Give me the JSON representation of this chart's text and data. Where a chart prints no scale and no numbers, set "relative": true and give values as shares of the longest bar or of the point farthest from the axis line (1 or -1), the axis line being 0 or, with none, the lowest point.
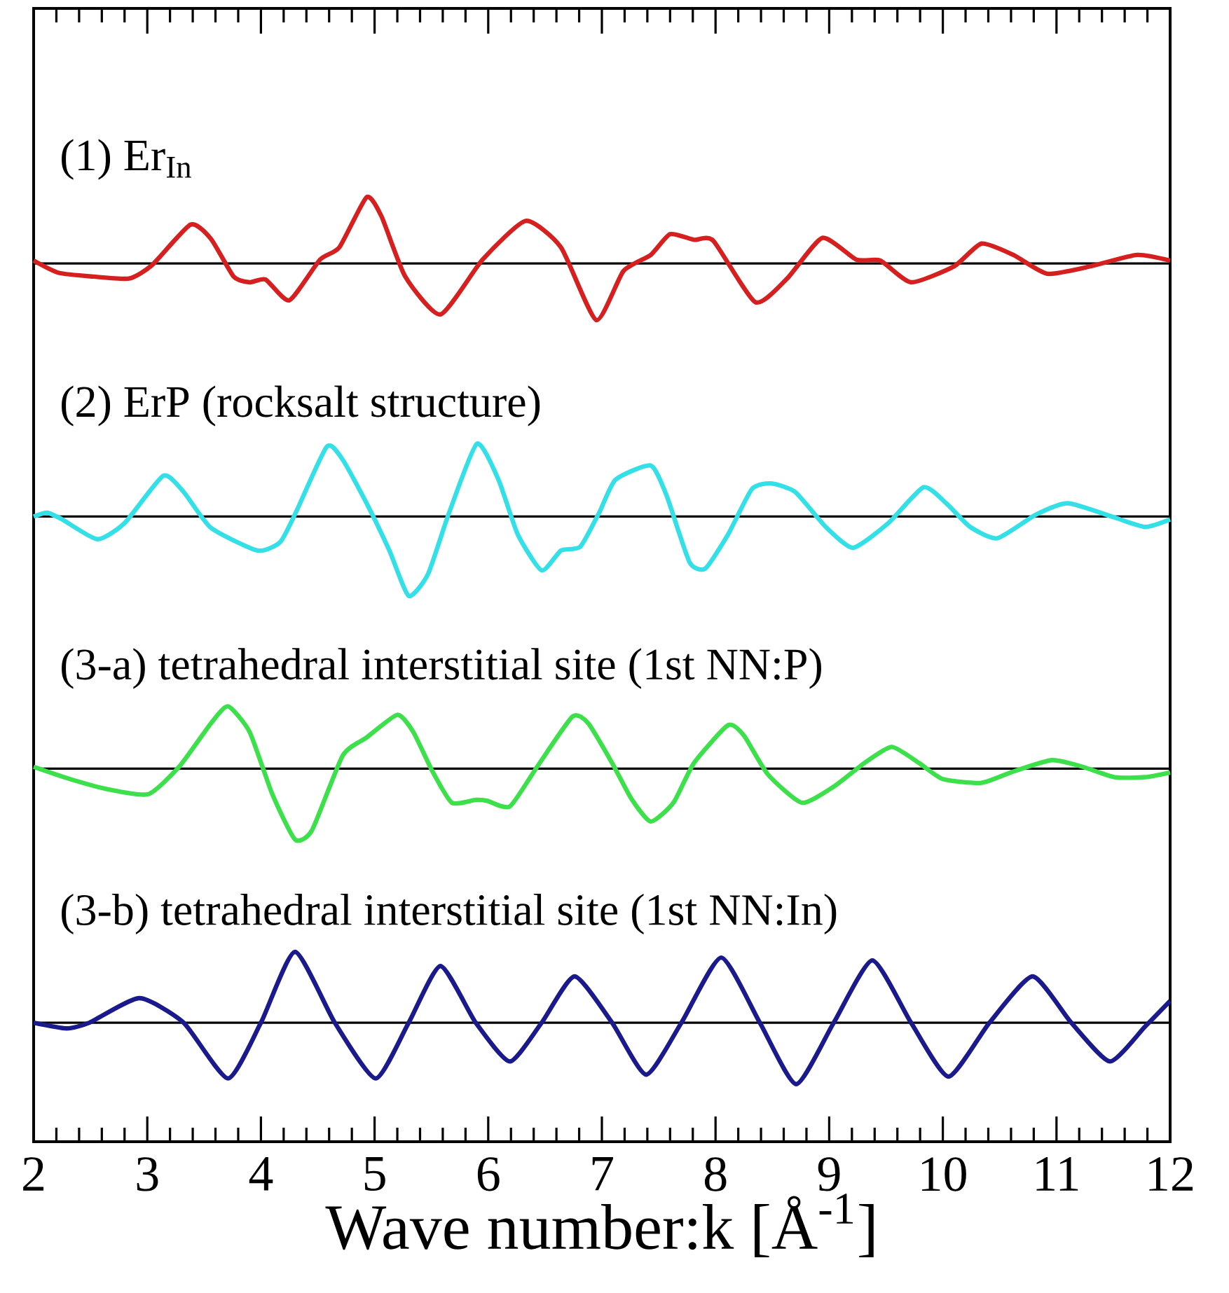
{
  "chart_data": {
    "type": "line",
    "xlabel": "Wave number:k [Å$^{-1}$]",
    "relative": true,
    "xlim": [
      2,
      12
    ],
    "xticks": [
      2,
      3,
      4,
      5,
      6,
      7,
      8,
      9,
      10,
      11,
      12
    ],
    "series": [
      {
        "name": "(1) Er$_{In}$",
        "color": "#d62020",
        "x": [
          2.0,
          2.22,
          2.53,
          2.84,
          3.04,
          3.38,
          3.56,
          3.76,
          3.9,
          4.04,
          4.25,
          4.52,
          4.69,
          4.93,
          5.06,
          5.27,
          5.58,
          5.95,
          6.33,
          6.64,
          6.95,
          7.19,
          7.43,
          7.6,
          7.81,
          7.98,
          8.35,
          8.63,
          8.94,
          9.24,
          9.45,
          9.72,
          10.1,
          10.34,
          10.62,
          10.92,
          11.3,
          11.71,
          12.0
        ],
        "values": [
          0.933,
          0.92,
          0.916,
          0.914,
          0.928,
          0.971,
          0.956,
          0.916,
          0.91,
          0.913,
          0.891,
          0.934,
          0.947,
          1.0,
          0.98,
          0.916,
          0.876,
          0.934,
          0.975,
          0.947,
          0.87,
          0.922,
          0.939,
          0.961,
          0.955,
          0.954,
          0.889,
          0.914,
          0.957,
          0.934,
          0.933,
          0.91,
          0.927,
          0.951,
          0.939,
          0.919,
          0.927,
          0.939,
          0.933
        ]
      },
      {
        "name": "(2) ErP (rocksalt structure)",
        "color": "#33e0e8",
        "x": [
          2.0,
          2.12,
          2.25,
          2.56,
          2.8,
          3.14,
          3.32,
          3.56,
          3.97,
          4.17,
          4.31,
          4.58,
          4.72,
          4.93,
          5.13,
          5.3,
          5.47,
          5.65,
          5.9,
          6.09,
          6.26,
          6.47,
          6.64,
          6.81,
          6.98,
          7.12,
          7.43,
          7.57,
          7.77,
          7.91,
          8.11,
          8.32,
          8.49,
          8.7,
          8.97,
          9.21,
          9.52,
          9.83,
          10.03,
          10.24,
          10.48,
          10.82,
          11.1,
          11.51,
          11.78,
          12.0
        ],
        "values": [
          0.662,
          0.666,
          0.659,
          0.638,
          0.655,
          0.705,
          0.688,
          0.65,
          0.626,
          0.635,
          0.667,
          0.736,
          0.722,
          0.676,
          0.626,
          0.578,
          0.601,
          0.664,
          0.739,
          0.701,
          0.643,
          0.605,
          0.626,
          0.63,
          0.667,
          0.701,
          0.716,
          0.684,
          0.614,
          0.607,
          0.643,
          0.691,
          0.697,
          0.688,
          0.651,
          0.629,
          0.655,
          0.693,
          0.676,
          0.651,
          0.639,
          0.664,
          0.676,
          0.661,
          0.651,
          0.659
        ]
      },
      {
        "name": "(3-a) tetrahedral interstitial site (1st NN:P)",
        "color": "#3ce04a",
        "x": [
          2.0,
          2.32,
          2.66,
          3.01,
          3.28,
          3.56,
          3.71,
          3.9,
          4.1,
          4.3,
          4.45,
          4.72,
          4.93,
          5.2,
          5.34,
          5.51,
          5.68,
          5.89,
          5.99,
          6.19,
          6.43,
          6.74,
          6.88,
          7.09,
          7.26,
          7.43,
          7.63,
          7.81,
          8.11,
          8.25,
          8.46,
          8.76,
          9.04,
          9.31,
          9.55,
          9.79,
          10.0,
          10.34,
          10.62,
          10.96,
          11.23,
          11.51,
          11.78,
          12.0
        ],
        "values": [
          0.397,
          0.384,
          0.373,
          0.368,
          0.397,
          0.443,
          0.461,
          0.434,
          0.368,
          0.32,
          0.33,
          0.409,
          0.428,
          0.452,
          0.434,
          0.392,
          0.359,
          0.362,
          0.361,
          0.355,
          0.397,
          0.45,
          0.443,
          0.401,
          0.363,
          0.339,
          0.359,
          0.401,
          0.441,
          0.43,
          0.389,
          0.359,
          0.376,
          0.401,
          0.418,
          0.401,
          0.384,
          0.38,
          0.392,
          0.404,
          0.397,
          0.386,
          0.386,
          0.391
        ]
      },
      {
        "name": "(3-b) tetrahedral interstitial site (1st NN:In)",
        "color": "#1a1a8c",
        "x": [
          2.0,
          2.29,
          2.49,
          2.93,
          3.32,
          3.71,
          4.0,
          4.3,
          4.65,
          5.01,
          5.3,
          5.58,
          5.89,
          6.19,
          6.47,
          6.76,
          7.09,
          7.39,
          7.7,
          8.05,
          8.39,
          8.71,
          9.04,
          9.38,
          9.72,
          10.05,
          10.41,
          10.79,
          11.13,
          11.47,
          11.78,
          12.0
        ],
        "values": [
          0.126,
          0.12,
          0.126,
          0.152,
          0.126,
          0.067,
          0.126,
          0.201,
          0.126,
          0.067,
          0.126,
          0.186,
          0.126,
          0.085,
          0.126,
          0.175,
          0.126,
          0.071,
          0.126,
          0.195,
          0.126,
          0.061,
          0.126,
          0.192,
          0.126,
          0.069,
          0.126,
          0.175,
          0.126,
          0.085,
          0.122,
          0.149
        ]
      }
    ],
    "ref_lines": [
      {
        "axis": "y",
        "value": 0.93,
        "color": "#000000"
      },
      {
        "axis": "y",
        "value": 0.662,
        "color": "#000000"
      },
      {
        "axis": "y",
        "value": 0.395,
        "color": "#000000"
      },
      {
        "axis": "y",
        "value": 0.126,
        "color": "#000000"
      }
    ]
  }
}
